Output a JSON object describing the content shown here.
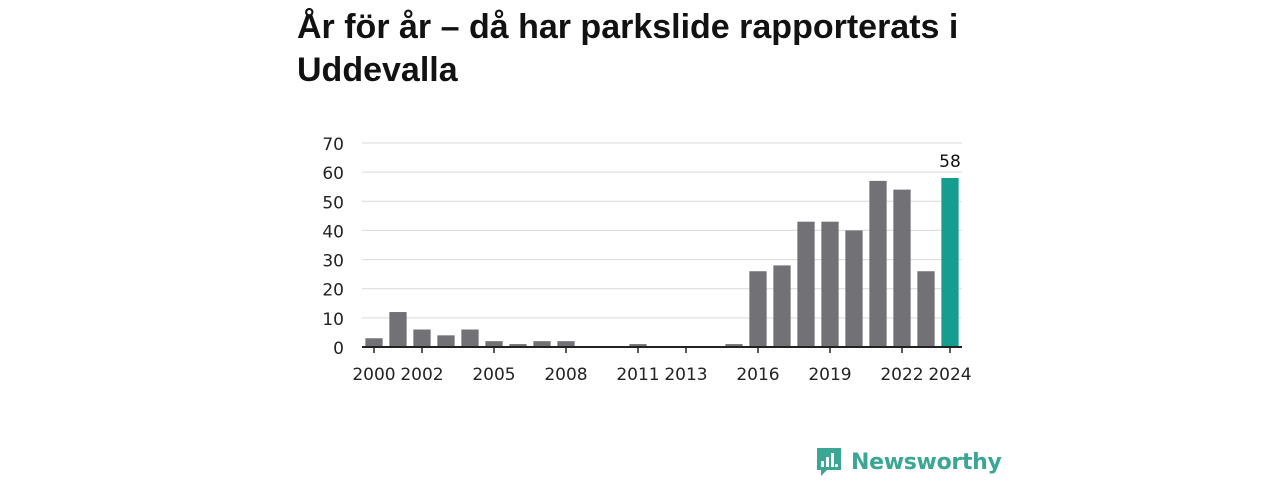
{
  "title": "År för år – då har parkslide rapporterats i Uddevalla",
  "brand": {
    "name": "Newsworthy",
    "icon": "newsworthy-logo-icon",
    "color": "#3aa693"
  },
  "colors": {
    "bar": "#727176",
    "highlight": "#159e90",
    "grid": "#d9d9d9",
    "axis": "#222222"
  },
  "chart_data": {
    "type": "bar",
    "title": "År för år – då har parkslide rapporterats i Uddevalla",
    "xlabel": "",
    "ylabel": "",
    "categories": [
      "2000",
      "2001",
      "2002",
      "2003",
      "2004",
      "2005",
      "2006",
      "2007",
      "2008",
      "2009",
      "2010",
      "2011",
      "2012",
      "2013",
      "2014",
      "2015",
      "2016",
      "2017",
      "2018",
      "2019",
      "2020",
      "2021",
      "2022",
      "2023",
      "2024"
    ],
    "values": [
      3,
      12,
      6,
      4,
      6,
      2,
      1,
      2,
      2,
      0,
      0,
      1,
      0,
      0,
      0,
      1,
      26,
      28,
      43,
      43,
      40,
      57,
      54,
      26,
      58
    ],
    "x_tick_labels": [
      "2000",
      "2002",
      "2005",
      "2008",
      "2011",
      "2013",
      "2016",
      "2019",
      "2022",
      "2024"
    ],
    "y_ticks": [
      0,
      10,
      20,
      30,
      40,
      50,
      60,
      70
    ],
    "ylim": [
      0,
      70
    ],
    "grid": true,
    "highlight": {
      "category": "2024",
      "label": "58"
    }
  }
}
